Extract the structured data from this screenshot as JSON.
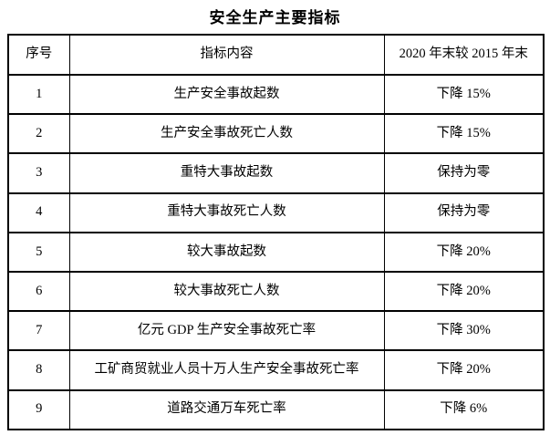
{
  "title": "安全生产主要指标",
  "table": {
    "headers": [
      "序号",
      "指标内容",
      "2020 年末较 2015 年末"
    ],
    "rows": [
      {
        "no": "1",
        "indicator": "生产安全事故起数",
        "change": "下降 15%"
      },
      {
        "no": "2",
        "indicator": "生产安全事故死亡人数",
        "change": "下降 15%"
      },
      {
        "no": "3",
        "indicator": "重特大事故起数",
        "change": "保持为零"
      },
      {
        "no": "4",
        "indicator": "重特大事故死亡人数",
        "change": "保持为零"
      },
      {
        "no": "5",
        "indicator": "较大事故起数",
        "change": "下降 20%"
      },
      {
        "no": "6",
        "indicator": "较大事故死亡人数",
        "change": "下降 20%"
      },
      {
        "no": "7",
        "indicator": "亿元 GDP 生产安全事故死亡率",
        "change": "下降 30%"
      },
      {
        "no": "8",
        "indicator": "工矿商贸就业人员十万人生产安全事故死亡率",
        "change": "下降 20%"
      },
      {
        "no": "9",
        "indicator": "道路交通万车死亡率",
        "change": "下降 6%"
      }
    ]
  }
}
